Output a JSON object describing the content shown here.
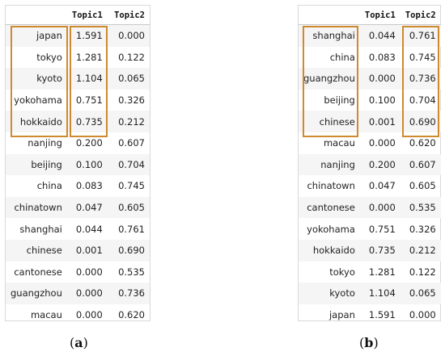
{
  "panel_a": {
    "headers": [
      "",
      "Topic1",
      "Topic2"
    ],
    "rows": [
      [
        "japan",
        "1.591",
        "0.000"
      ],
      [
        "tokyo",
        "1.281",
        "0.122"
      ],
      [
        "kyoto",
        "1.104",
        "0.065"
      ],
      [
        "yokohama",
        "0.751",
        "0.326"
      ],
      [
        "hokkaido",
        "0.735",
        "0.212"
      ],
      [
        "nanjing",
        "0.200",
        "0.607"
      ],
      [
        "beijing",
        "0.100",
        "0.704"
      ],
      [
        "china",
        "0.083",
        "0.745"
      ],
      [
        "chinatown",
        "0.047",
        "0.605"
      ],
      [
        "shanghai",
        "0.044",
        "0.761"
      ],
      [
        "chinese",
        "0.001",
        "0.690"
      ],
      [
        "cantonese",
        "0.000",
        "0.535"
      ],
      [
        "guangzhou",
        "0.000",
        "0.736"
      ],
      [
        "macau",
        "0.000",
        "0.620"
      ]
    ],
    "caption_open": "(",
    "caption_letter": "a",
    "caption_close": ")"
  },
  "panel_b": {
    "headers": [
      "",
      "Topic1",
      "Topic2"
    ],
    "rows": [
      [
        "shanghai",
        "0.044",
        "0.761"
      ],
      [
        "china",
        "0.083",
        "0.745"
      ],
      [
        "guangzhou",
        "0.000",
        "0.736"
      ],
      [
        "beijing",
        "0.100",
        "0.704"
      ],
      [
        "chinese",
        "0.001",
        "0.690"
      ],
      [
        "macau",
        "0.000",
        "0.620"
      ],
      [
        "nanjing",
        "0.200",
        "0.607"
      ],
      [
        "chinatown",
        "0.047",
        "0.605"
      ],
      [
        "cantonese",
        "0.000",
        "0.535"
      ],
      [
        "yokohama",
        "0.751",
        "0.326"
      ],
      [
        "hokkaido",
        "0.735",
        "0.212"
      ],
      [
        "tokyo",
        "1.281",
        "0.122"
      ],
      [
        "kyoto",
        "1.104",
        "0.065"
      ],
      [
        "japan",
        "1.591",
        "0.000"
      ]
    ],
    "caption_open": "(",
    "caption_letter": "b",
    "caption_close": ")"
  },
  "highlight_color": "#cf8a30"
}
